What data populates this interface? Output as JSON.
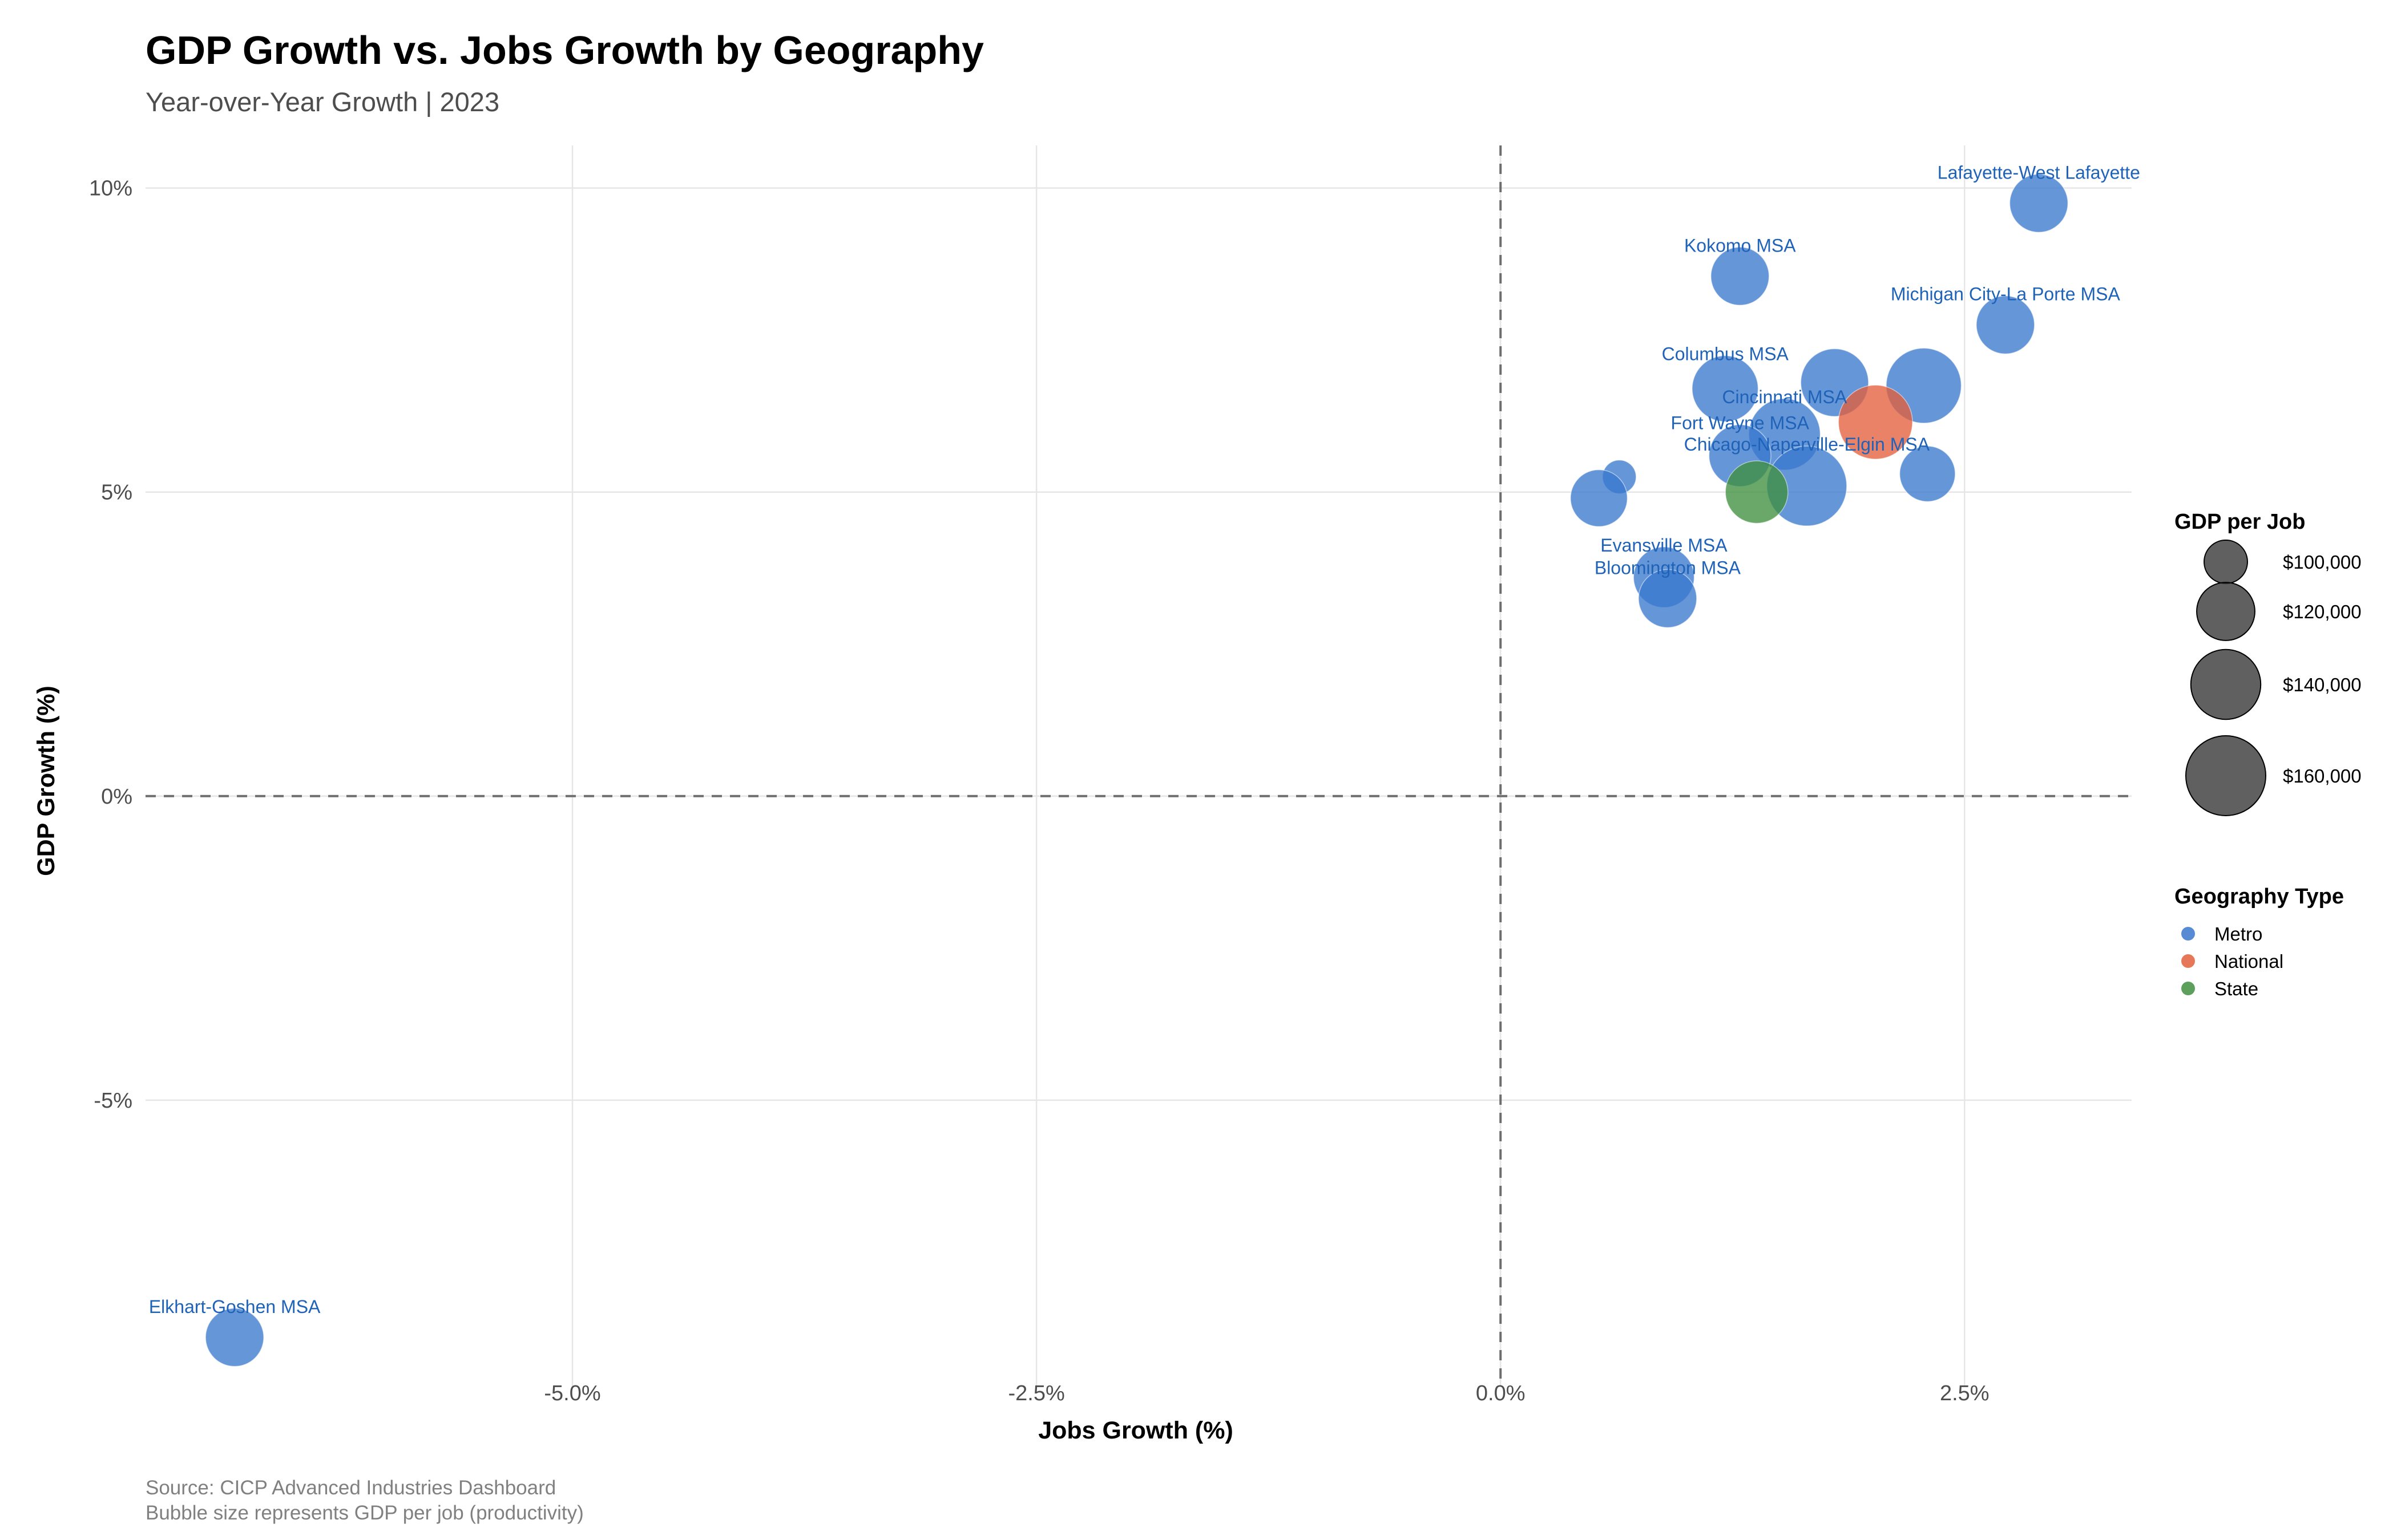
{
  "chart_data": {
    "type": "scatter",
    "title": "GDP Growth vs. Jobs Growth by Geography",
    "subtitle": "Year-over-Year Growth | 2023",
    "xlabel": "Jobs Growth (%)",
    "ylabel": "GDP Growth (%)",
    "xlim": [
      -7.3,
      3.4
    ],
    "ylim": [
      -9.7,
      10.7
    ],
    "x_ticks": [
      -5.0,
      -2.5,
      0.0,
      2.5
    ],
    "x_tick_labels": [
      "-5.0%",
      "-2.5%",
      "0.0%",
      "2.5%"
    ],
    "y_ticks": [
      -5,
      0,
      5,
      10
    ],
    "y_tick_labels": [
      "-5%",
      "0%",
      "5%",
      "10%"
    ],
    "grid": true,
    "reference_lines": [
      {
        "axis": "x",
        "value": 0,
        "style": "dashed"
      },
      {
        "axis": "y",
        "value": 0,
        "style": "dashed"
      }
    ],
    "caption": [
      "Source: CICP Advanced Industries Dashboard",
      "Bubble size represents GDP per job (productivity)"
    ],
    "colors": {
      "Metro": "#3a78cd",
      "National": "#e35f3c",
      "State": "#3f8f3f",
      "label": "#1f63b8"
    },
    "size_legend": {
      "title": "GDP per Job",
      "values": [
        100000,
        120000,
        140000,
        160000
      ],
      "labels": [
        "$100,000",
        "$120,000",
        "$140,000",
        "$160,000"
      ]
    },
    "color_legend": {
      "title": "Geography Type",
      "items": [
        "Metro",
        "National",
        "State"
      ]
    },
    "points": [
      {
        "label": "Elkhart-Goshen MSA",
        "type": "Metro",
        "x": -6.82,
        "y": -8.9,
        "gdp_per_job": 120000
      },
      {
        "label": "Lafayette-West Lafayette",
        "type": "Metro",
        "x": 2.9,
        "y": 9.75,
        "gdp_per_job": 120000
      },
      {
        "label": "Kokomo MSA",
        "type": "Metro",
        "x": 1.29,
        "y": 8.55,
        "gdp_per_job": 120000
      },
      {
        "label": "Michigan City-La Porte MSA",
        "type": "Metro",
        "x": 2.72,
        "y": 7.75,
        "gdp_per_job": 120000
      },
      {
        "label": "Columbus MSA",
        "type": "Metro",
        "x": 1.21,
        "y": 6.7,
        "gdp_per_job": 133000
      },
      {
        "label": "",
        "type": "Metro",
        "x": 1.8,
        "y": 6.8,
        "gdp_per_job": 136000
      },
      {
        "label": "",
        "type": "Metro",
        "x": 2.28,
        "y": 6.75,
        "gdp_per_job": 150000
      },
      {
        "label": "",
        "type": "National",
        "x": 2.02,
        "y": 6.15,
        "gdp_per_job": 148000
      },
      {
        "label": "Cincinnati MSA",
        "type": "Metro",
        "x": 1.53,
        "y": 5.95,
        "gdp_per_job": 143000
      },
      {
        "label": "Fort Wayne MSA",
        "type": "Metro",
        "x": 1.29,
        "y": 5.6,
        "gdp_per_job": 126000
      },
      {
        "label": "Chicago-Naperville-Elgin MSA",
        "type": "Metro",
        "x": 1.65,
        "y": 5.1,
        "gdp_per_job": 160000
      },
      {
        "label": "",
        "type": "Metro",
        "x": 2.3,
        "y": 5.3,
        "gdp_per_job": 116000
      },
      {
        "label": "",
        "type": "Metro",
        "x": 0.64,
        "y": 5.25,
        "gdp_per_job": 90000
      },
      {
        "label": "",
        "type": "Metro",
        "x": 0.53,
        "y": 4.9,
        "gdp_per_job": 118000
      },
      {
        "label": "",
        "type": "State",
        "x": 1.38,
        "y": 5.0,
        "gdp_per_job": 127000
      },
      {
        "label": "Evansville MSA",
        "type": "Metro",
        "x": 0.88,
        "y": 3.6,
        "gdp_per_job": 124000
      },
      {
        "label": "Bloomington MSA",
        "type": "Metro",
        "x": 0.9,
        "y": 3.25,
        "gdp_per_job": 120000
      }
    ]
  }
}
